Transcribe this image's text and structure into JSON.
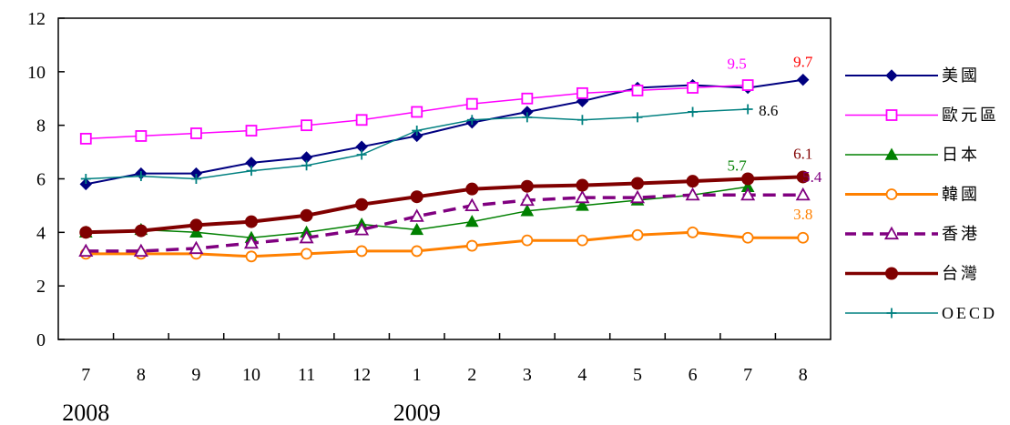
{
  "chart_data": {
    "type": "line",
    "title": "",
    "xlabel": "",
    "ylabel": "",
    "categories": [
      "7",
      "8",
      "9",
      "10",
      "11",
      "12",
      "1",
      "2",
      "3",
      "4",
      "5",
      "6",
      "7",
      "8"
    ],
    "year_labels": [
      {
        "text": "2008",
        "category_index": 0
      },
      {
        "text": "2009",
        "category_index": 6
      }
    ],
    "ylim": [
      0,
      12
    ],
    "yticks": [
      0,
      2,
      4,
      6,
      8,
      10,
      12
    ],
    "grid": false,
    "legend_position": "right",
    "series": [
      {
        "name": "美國",
        "color": "#000080",
        "marker": "diamond-filled",
        "dash": "solid",
        "values": [
          5.8,
          6.2,
          6.2,
          6.6,
          6.8,
          7.2,
          7.6,
          8.1,
          8.5,
          8.9,
          9.4,
          9.5,
          9.4,
          9.7
        ],
        "end_label": "9.7",
        "end_label_color": "#ff0000"
      },
      {
        "name": "歐元區",
        "color": "#ff00ff",
        "marker": "square-open",
        "dash": "solid",
        "values": [
          7.5,
          7.6,
          7.7,
          7.8,
          8.0,
          8.2,
          8.5,
          8.8,
          9.0,
          9.2,
          9.3,
          9.4,
          9.5,
          null
        ],
        "end_label": "9.5",
        "end_label_color": "#ff00ff"
      },
      {
        "name": "日本",
        "color": "#008000",
        "marker": "triangle-filled",
        "dash": "solid",
        "values": [
          4.0,
          4.1,
          4.0,
          3.8,
          4.0,
          4.3,
          4.1,
          4.4,
          4.8,
          5.0,
          5.2,
          5.4,
          5.7,
          null
        ],
        "end_label": "5.7",
        "end_label_color": "#008000"
      },
      {
        "name": "韓國",
        "color": "#ff8000",
        "marker": "circle-open",
        "dash": "solid",
        "values": [
          3.2,
          3.2,
          3.2,
          3.1,
          3.2,
          3.3,
          3.3,
          3.5,
          3.7,
          3.7,
          3.9,
          4.0,
          3.8,
          3.8
        ],
        "end_label": "3.8",
        "end_label_color": "#ff8000"
      },
      {
        "name": "香港",
        "color": "#800080",
        "marker": "triangle-open",
        "dash": "dashed",
        "values": [
          3.3,
          3.3,
          3.4,
          3.6,
          3.8,
          4.1,
          4.6,
          5.0,
          5.2,
          5.3,
          5.3,
          5.4,
          5.4,
          5.4
        ],
        "end_label": "5.4",
        "end_label_color": "#800080"
      },
      {
        "name": "台灣",
        "color": "#800000",
        "marker": "circle-filled",
        "dash": "solid",
        "values": [
          4.0,
          4.06,
          4.27,
          4.4,
          4.63,
          5.04,
          5.33,
          5.62,
          5.72,
          5.76,
          5.83,
          5.91,
          6.0,
          6.07
        ],
        "end_label": "6.1",
        "end_label_color": "#800000"
      },
      {
        "name": "OECD",
        "color": "#008080",
        "marker": "plus",
        "dash": "solid",
        "values": [
          6.0,
          6.1,
          6.0,
          6.3,
          6.5,
          6.9,
          7.8,
          8.2,
          8.3,
          8.2,
          8.3,
          8.5,
          8.6,
          null
        ],
        "end_label": "8.6",
        "end_label_color": "#000000"
      }
    ]
  }
}
